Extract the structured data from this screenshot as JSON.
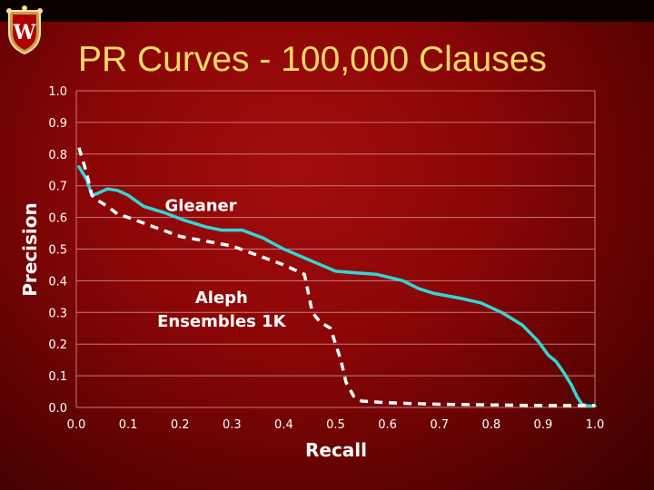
{
  "title": "PR Curves - 100,000 Clauses",
  "logo": {
    "letter": "W"
  },
  "chart_data": {
    "type": "line",
    "xlabel": "Recall",
    "ylabel": "Precision",
    "xlim": [
      0.0,
      1.0
    ],
    "ylim": [
      0.0,
      1.0
    ],
    "xticks": [
      "0.0",
      "0.1",
      "0.2",
      "0.3",
      "0.4",
      "0.5",
      "0.6",
      "0.7",
      "0.8",
      "0.9",
      "1.0"
    ],
    "yticks": [
      "0.0",
      "0.1",
      "0.2",
      "0.3",
      "0.4",
      "0.5",
      "0.6",
      "0.7",
      "0.8",
      "0.9",
      "1.0"
    ],
    "grid": true,
    "series": [
      {
        "name": "Gleaner",
        "label_lines": [
          "Gleaner"
        ],
        "color": "#33d6d6",
        "style": "solid",
        "x": [
          0.005,
          0.02,
          0.03,
          0.04,
          0.06,
          0.08,
          0.1,
          0.13,
          0.17,
          0.21,
          0.25,
          0.28,
          0.32,
          0.36,
          0.4,
          0.45,
          0.5,
          0.54,
          0.58,
          0.63,
          0.66,
          0.69,
          0.74,
          0.78,
          0.82,
          0.86,
          0.89,
          0.91,
          0.925,
          0.94,
          0.955,
          0.965,
          0.975,
          0.985,
          1.0
        ],
        "y": [
          0.76,
          0.72,
          0.67,
          0.675,
          0.69,
          0.685,
          0.67,
          0.635,
          0.615,
          0.59,
          0.57,
          0.56,
          0.56,
          0.535,
          0.5,
          0.465,
          0.43,
          0.425,
          0.42,
          0.4,
          0.375,
          0.36,
          0.345,
          0.33,
          0.3,
          0.26,
          0.21,
          0.165,
          0.145,
          0.11,
          0.07,
          0.035,
          0.01,
          0.005,
          0.005
        ]
      },
      {
        "name": "Aleph Ensembles 1K",
        "label_lines": [
          "Aleph",
          "Ensembles 1K"
        ],
        "color": "#ffffff",
        "style": "dashed",
        "x": [
          0.005,
          0.02,
          0.03,
          0.04,
          0.06,
          0.08,
          0.1,
          0.15,
          0.2,
          0.25,
          0.3,
          0.35,
          0.4,
          0.44,
          0.455,
          0.47,
          0.49,
          0.51,
          0.52,
          0.535,
          0.55,
          0.57,
          0.6,
          0.65,
          0.7,
          0.8,
          0.9,
          1.0
        ],
        "y": [
          0.82,
          0.74,
          0.67,
          0.655,
          0.635,
          0.61,
          0.6,
          0.57,
          0.54,
          0.525,
          0.51,
          0.48,
          0.45,
          0.42,
          0.3,
          0.27,
          0.25,
          0.15,
          0.08,
          0.035,
          0.02,
          0.018,
          0.015,
          0.012,
          0.01,
          0.008,
          0.006,
          0.006
        ]
      }
    ]
  }
}
